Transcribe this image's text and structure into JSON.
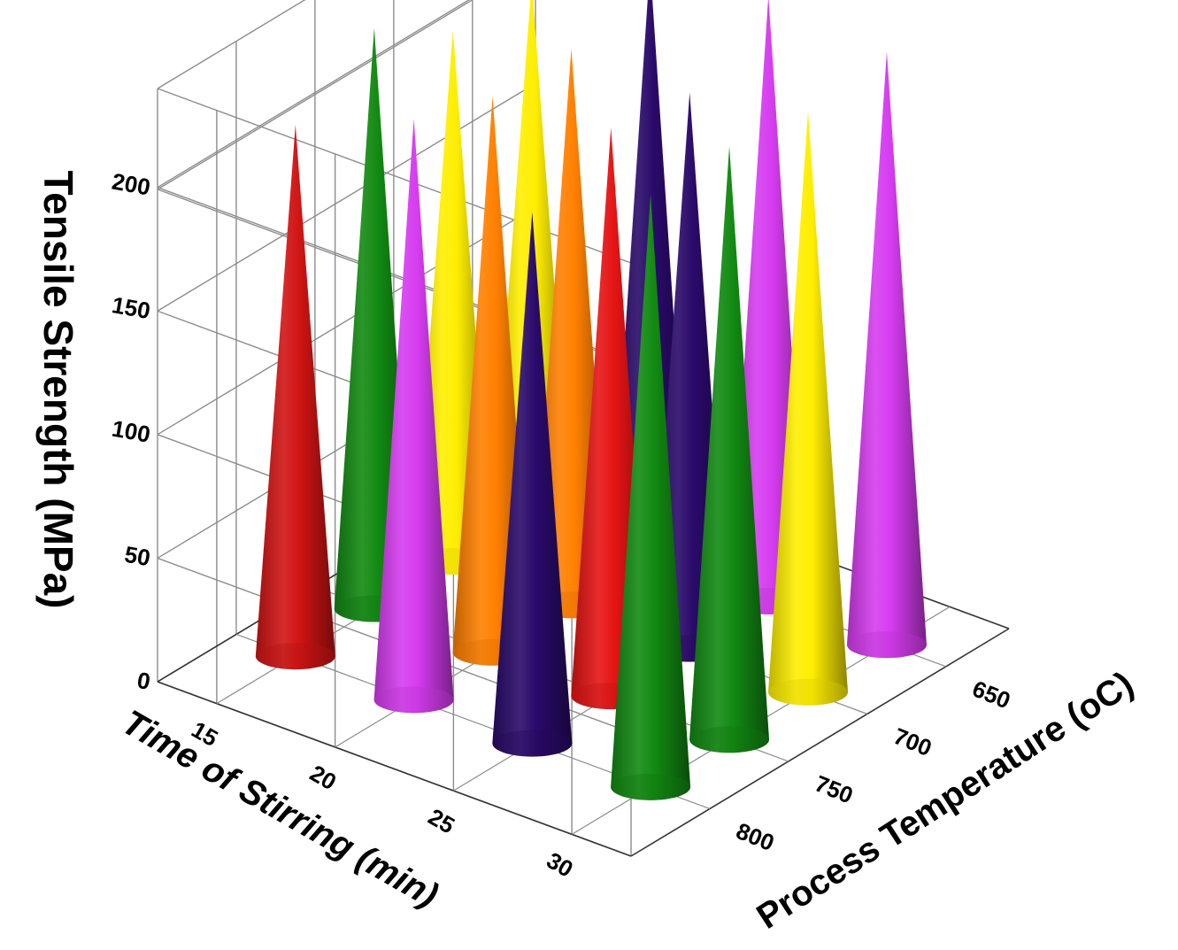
{
  "chart_data": {
    "type": "bar3d-cone",
    "title": "",
    "zlabel": "Tensile Strength (MPa)",
    "xlabel": "Time of Stirring (min)",
    "ylabel": "Process Temperature (oC)",
    "zlim": [
      0,
      240
    ],
    "z_ticks": [
      "0",
      "50",
      "100",
      "150",
      "200"
    ],
    "x_ticks": [
      "15",
      "20",
      "25",
      "30"
    ],
    "y_ticks": [
      "650",
      "700",
      "750",
      "800"
    ],
    "grid": true,
    "points": [
      {
        "time": 15,
        "temp": 800,
        "value": 215,
        "color": "#d11414"
      },
      {
        "time": 20,
        "temp": 800,
        "value": 235,
        "color": "#d63cf0"
      },
      {
        "time": 25,
        "temp": 800,
        "value": 215,
        "color": "#2a0a6a"
      },
      {
        "time": 30,
        "temp": 800,
        "value": 240,
        "color": "#128a12"
      },
      {
        "time": 15,
        "temp": 750,
        "value": 235,
        "color": "#128a12"
      },
      {
        "time": 20,
        "temp": 750,
        "value": 225,
        "color": "#ff8000"
      },
      {
        "time": 25,
        "temp": 750,
        "value": 230,
        "color": "#e51414"
      },
      {
        "time": 30,
        "temp": 750,
        "value": 240,
        "color": "#128a12"
      },
      {
        "time": 15,
        "temp": 700,
        "value": 215,
        "color": "#ffee00"
      },
      {
        "time": 20,
        "temp": 700,
        "value": 225,
        "color": "#ff8000"
      },
      {
        "time": 25,
        "temp": 700,
        "value": 225,
        "color": "#2a0a6a"
      },
      {
        "time": 30,
        "temp": 700,
        "value": 235,
        "color": "#ffee00"
      },
      {
        "time": 15,
        "temp": 650,
        "value": 215,
        "color": "#ffee00"
      },
      {
        "time": 20,
        "temp": 650,
        "value": 240,
        "color": "#2a0a6a"
      },
      {
        "time": 25,
        "temp": 650,
        "value": 245,
        "color": "#d63cf0"
      },
      {
        "time": 30,
        "temp": 650,
        "value": 240,
        "color": "#d63cf0"
      }
    ]
  }
}
